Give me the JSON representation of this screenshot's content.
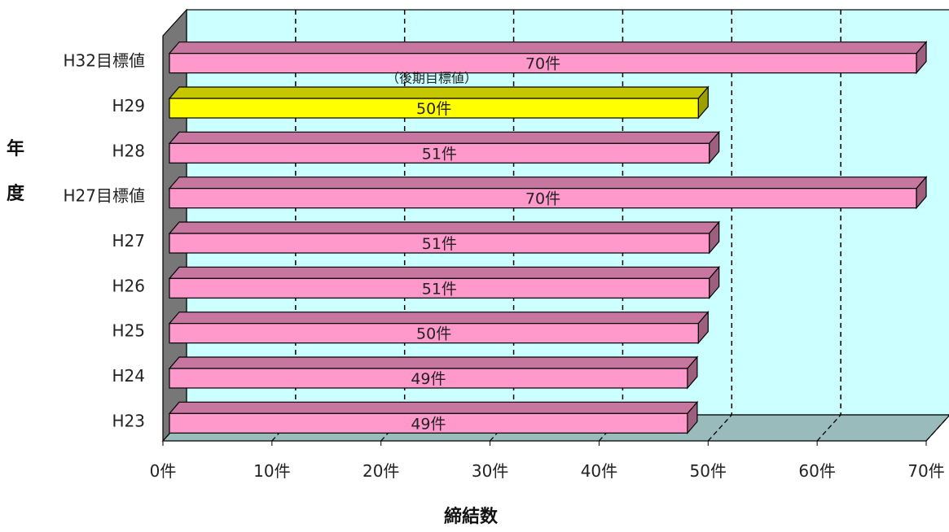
{
  "chart_data": {
    "type": "bar",
    "orientation": "horizontal",
    "style": "3d",
    "categories": [
      "H32目標値",
      "H29",
      "H28",
      "H27目標値",
      "H27",
      "H26",
      "H25",
      "H24",
      "H23"
    ],
    "values": [
      70,
      50,
      51,
      70,
      51,
      51,
      50,
      49,
      49
    ],
    "value_labels": [
      "70件",
      "50件",
      "51件",
      "70件",
      "51件",
      "51件",
      "50件",
      "49件",
      "49件"
    ],
    "bar_colors": [
      "#ff99cc",
      "#ffff00",
      "#ff99cc",
      "#ff99cc",
      "#ff99cc",
      "#ff99cc",
      "#ff99cc",
      "#ff99cc",
      "#ff99cc"
    ],
    "annotation": {
      "text": "（後期目標値）",
      "category": "H32目標値"
    },
    "xlabel": "締結数",
    "ylabel": "年度",
    "xlim": [
      0,
      70
    ],
    "xticks": [
      0,
      10,
      20,
      30,
      40,
      50,
      60,
      70
    ],
    "xtick_labels": [
      "0件",
      "10件",
      "20件",
      "30件",
      "40件",
      "50件",
      "60件",
      "70件"
    ],
    "grid": true,
    "colors": {
      "wall": "#ccffff",
      "floor": "#99bbbb",
      "side_wall": "#777777",
      "gridline": "#000000"
    }
  }
}
